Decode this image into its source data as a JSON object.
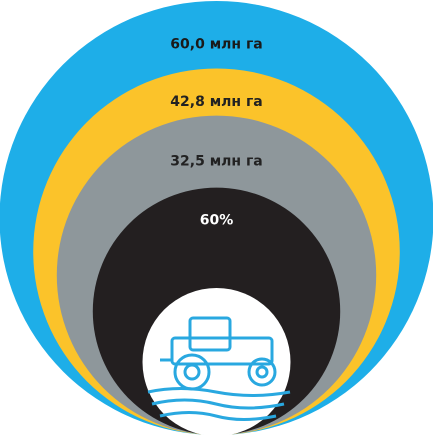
{
  "chart_data": {
    "type": "nested_circles",
    "values": [
      60.0,
      42.8,
      32.5
    ],
    "value_labels": [
      "60,0 млн га",
      "42,8 млн га",
      "32,5 млн га"
    ],
    "colors": [
      "#1eaee8",
      "#fbc32a",
      "#8e979b"
    ],
    "inner": {
      "value": 60,
      "value_label": "60%",
      "color": "#231f20"
    }
  }
}
